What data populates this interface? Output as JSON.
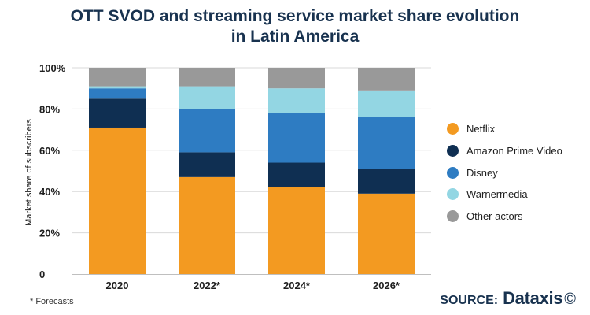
{
  "title_lines": [
    "OTT SVOD and streaming service market share evolution",
    "in Latin America"
  ],
  "footnote": "* Forecasts",
  "source": {
    "label": "SOURCE:",
    "brand": "Dataxis",
    "icon": "copyright-icon"
  },
  "colors": {
    "Netflix": "#f39a21",
    "Amazon Prime Video": "#0f2f52",
    "Disney": "#2e7cc2",
    "Warnermedia": "#93d6e3",
    "Other actors": "#999999",
    "grid": "#d9d9d9",
    "text": "#1f1f1f"
  },
  "chart_data": {
    "type": "bar",
    "stacked": true,
    "title": "OTT SVOD and streaming service market share evolution in Latin America",
    "xlabel": "",
    "ylabel": "Market share of subscribers",
    "ylim": [
      0,
      100
    ],
    "yticks": [
      0,
      20,
      40,
      60,
      80,
      100
    ],
    "ytick_labels": [
      "0",
      "20%",
      "40%",
      "60%",
      "80%",
      "100%"
    ],
    "grid": true,
    "legend_position": "right",
    "categories": [
      "2020",
      "2022*",
      "2024*",
      "2026*"
    ],
    "series": [
      {
        "name": "Netflix",
        "values": [
          71,
          47,
          42,
          39
        ]
      },
      {
        "name": "Amazon Prime Video",
        "values": [
          14,
          12,
          12,
          12
        ]
      },
      {
        "name": "Disney",
        "values": [
          5,
          21,
          24,
          25
        ]
      },
      {
        "name": "Warnermedia",
        "values": [
          1,
          11,
          12,
          13
        ]
      },
      {
        "name": "Other actors",
        "values": [
          9,
          9,
          10,
          11
        ]
      }
    ]
  }
}
